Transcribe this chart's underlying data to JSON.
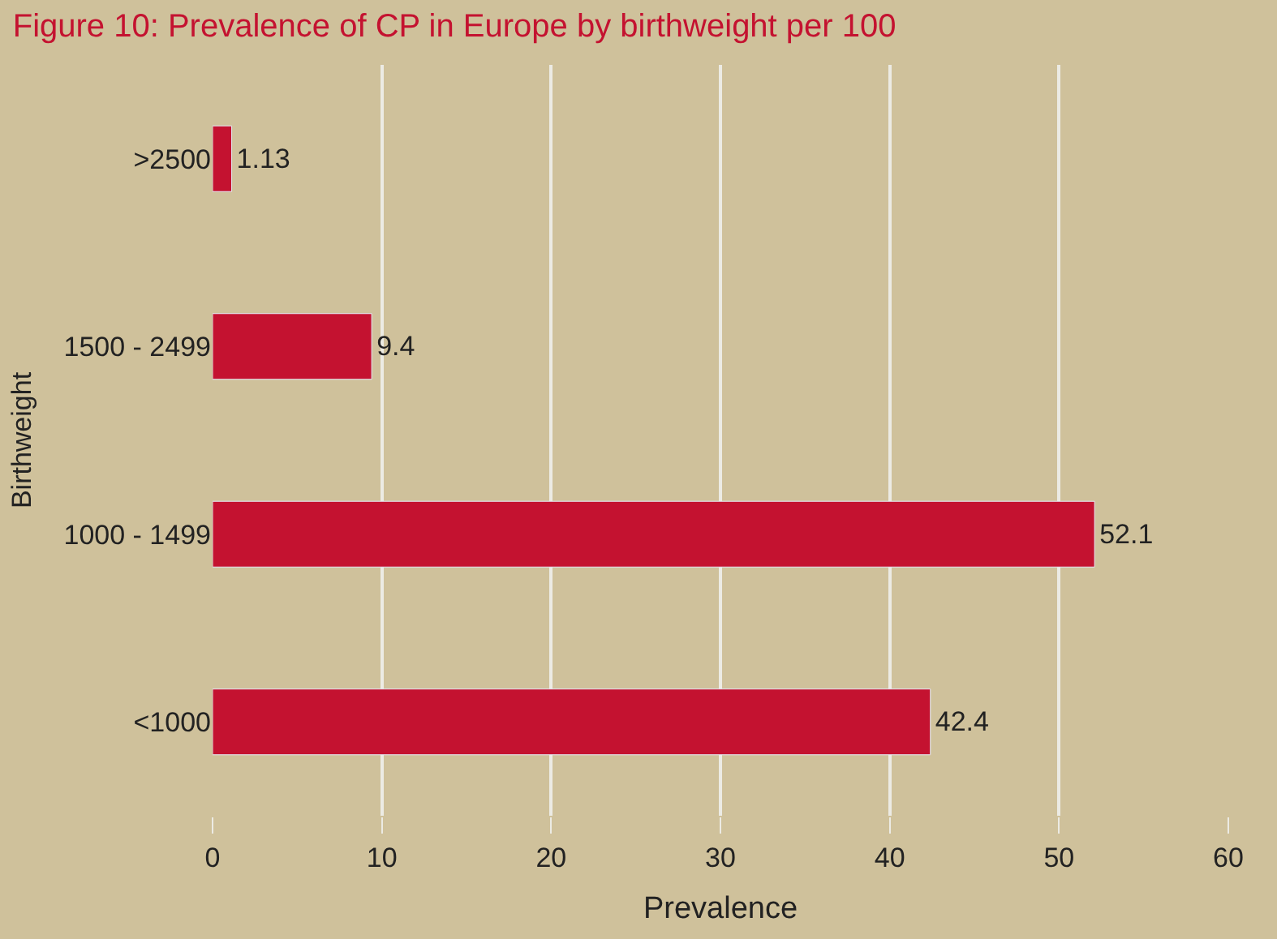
{
  "chart_data": {
    "type": "bar",
    "orientation": "horizontal",
    "title": "Figure 10: Prevalence of CP in Europe by birthweight per 100",
    "xlabel": "Prevalence",
    "ylabel": "Birthweight",
    "categories": [
      ">2500",
      "1500 - 2499",
      "1000 - 1499",
      "<1000"
    ],
    "values": [
      1.13,
      9.4,
      52.1,
      42.4
    ],
    "color": "#c41230",
    "data_labels": true,
    "xlim": [
      0,
      60
    ],
    "xticks": [
      0,
      10,
      20,
      30,
      40,
      50,
      60
    ],
    "grid": "x",
    "legend": false
  }
}
